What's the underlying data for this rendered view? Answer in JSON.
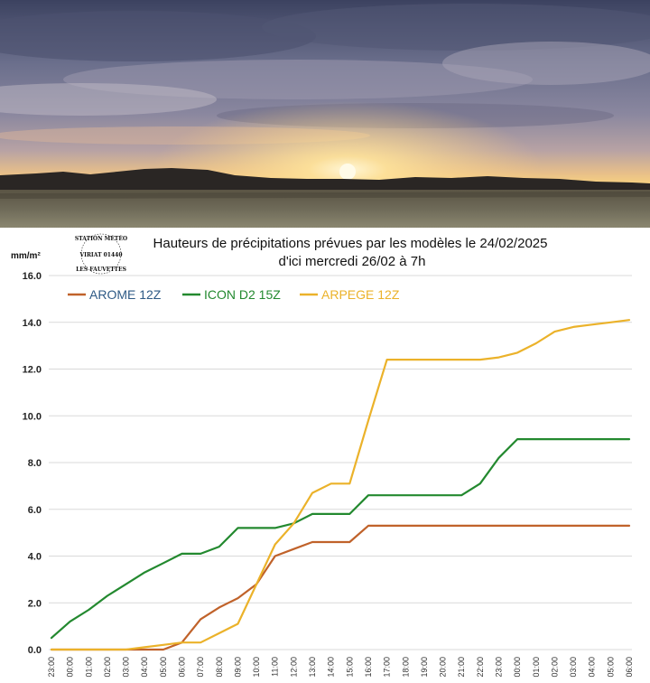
{
  "chart_data": {
    "type": "line",
    "title_line1": "Hauteurs de précipitations  prévues par les modèles le 24/02/2025",
    "title_line2": "d'ici mercredi 26/02 à 7h",
    "ylabel": "mm/m²",
    "ylim": [
      0,
      16
    ],
    "yticks": [
      "0.0",
      "2.0",
      "4.0",
      "6.0",
      "8.0",
      "10.0",
      "12.0",
      "14.0",
      "16.0"
    ],
    "grid": true,
    "legend_position": "top-left",
    "categories": [
      "23:00",
      "00:00",
      "01:00",
      "02:00",
      "03:00",
      "04:00",
      "05:00",
      "06:00",
      "07:00",
      "08:00",
      "09:00",
      "10:00",
      "11:00",
      "12:00",
      "13:00",
      "14:00",
      "15:00",
      "16:00",
      "17:00",
      "18:00",
      "19:00",
      "20:00",
      "21:00",
      "22:00",
      "23:00",
      "00:00",
      "01:00",
      "02:00",
      "03:00",
      "04:00",
      "05:00",
      "06:00"
    ],
    "series": [
      {
        "name": "AROME 12Z",
        "color": "#c0622a",
        "values": [
          0,
          0,
          0,
          0,
          0,
          0,
          0,
          0.3,
          1.3,
          1.8,
          2.2,
          2.8,
          4.0,
          4.3,
          4.6,
          4.6,
          4.6,
          5.3,
          5.3,
          5.3,
          5.3,
          5.3,
          5.3,
          5.3,
          5.3,
          5.3,
          5.3,
          5.3,
          5.3,
          5.3,
          5.3,
          5.3
        ]
      },
      {
        "name": "ICON D2 15Z",
        "color": "#23892f",
        "values": [
          0.5,
          1.2,
          1.7,
          2.3,
          2.8,
          3.3,
          3.7,
          4.1,
          4.1,
          4.4,
          5.2,
          5.2,
          5.2,
          5.4,
          5.8,
          5.8,
          5.8,
          6.6,
          6.6,
          6.6,
          6.6,
          6.6,
          6.6,
          7.1,
          8.2,
          9.0,
          9.0,
          9.0,
          9.0,
          9.0,
          9.0,
          9.0
        ]
      },
      {
        "name": "ARPEGE 12Z",
        "color": "#ebb22a",
        "values": [
          0,
          0,
          0,
          0,
          0,
          0.1,
          0.2,
          0.3,
          0.3,
          0.7,
          1.1,
          2.8,
          4.5,
          5.4,
          6.7,
          7.1,
          7.1,
          9.8,
          12.4,
          12.4,
          12.4,
          12.4,
          12.4,
          12.4,
          12.5,
          12.7,
          13.1,
          13.6,
          13.8,
          13.9,
          14.0,
          14.1
        ]
      }
    ]
  },
  "stamp": {
    "top": "STATION MÉTÉO",
    "middle": "VIRIAT 01440",
    "bottom": "LES FAUVETTES"
  }
}
